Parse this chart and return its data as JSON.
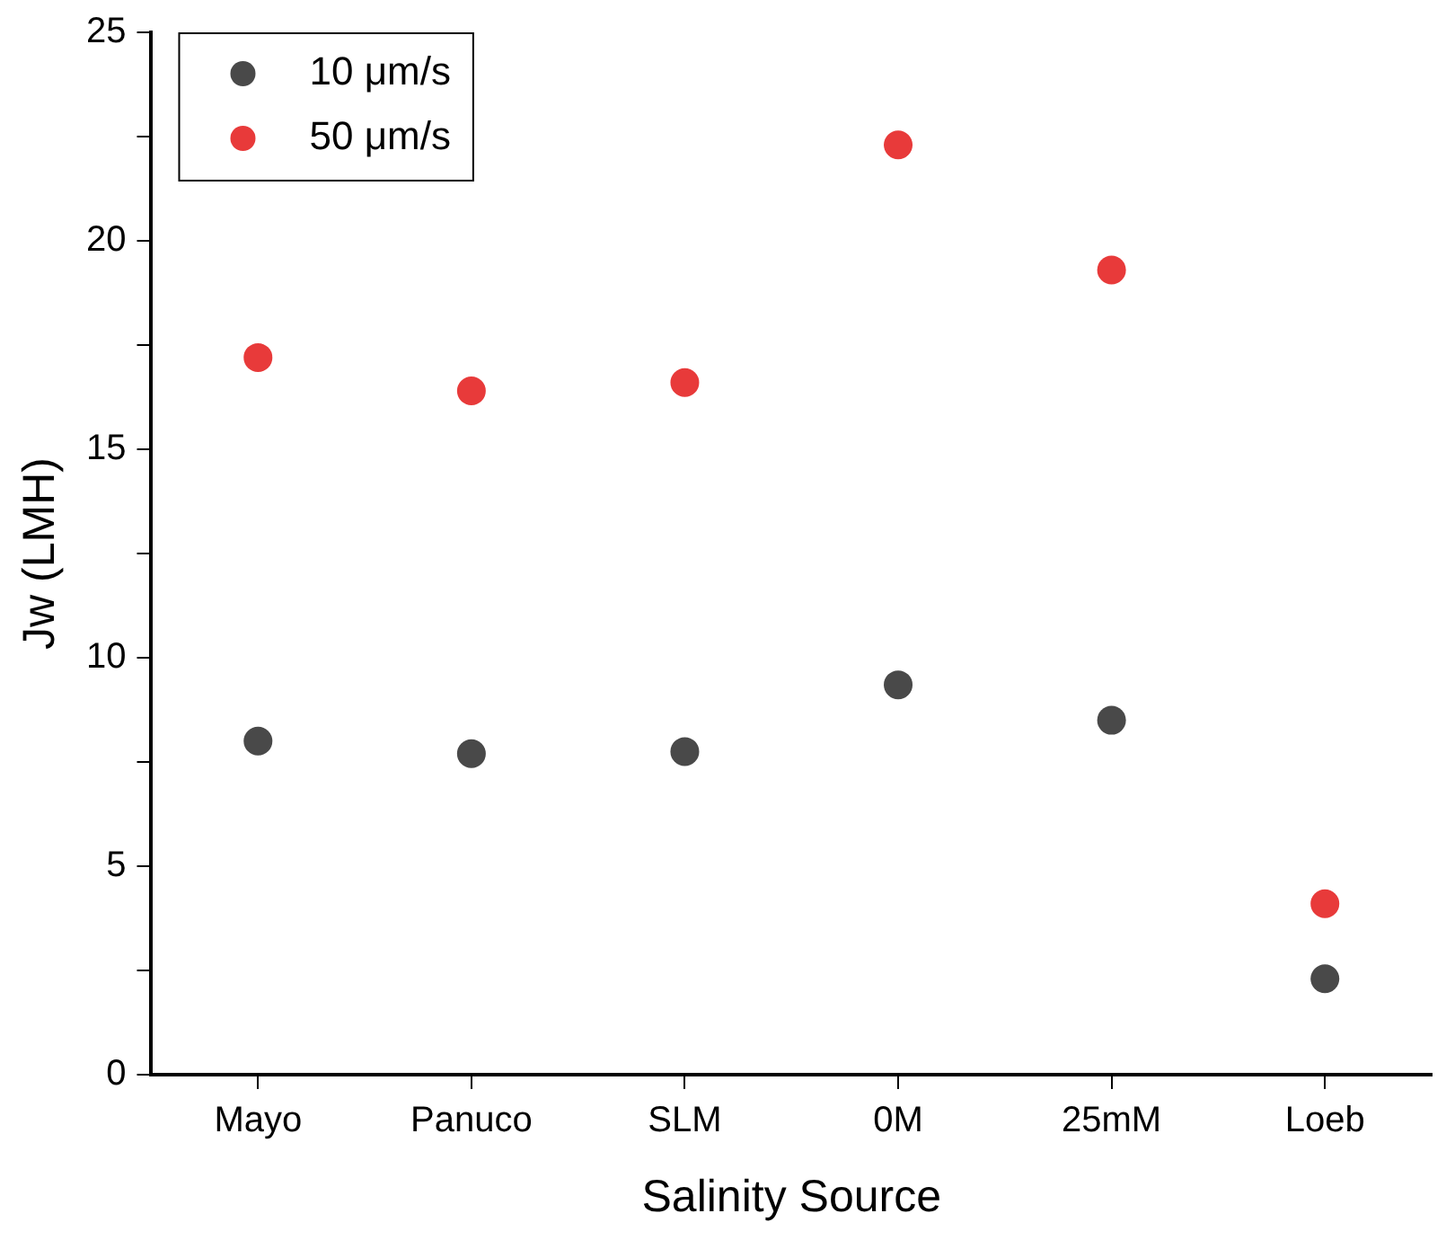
{
  "chart_data": {
    "type": "scatter",
    "xlabel": "Salinity Source",
    "ylabel": "Jw (LMH)",
    "categories": [
      "Mayo",
      "Panuco",
      "SLM",
      "0M",
      "25mM",
      "Loeb"
    ],
    "series": [
      {
        "name": "10 μm/s",
        "color": "#494949",
        "values": [
          8.0,
          7.7,
          7.75,
          9.35,
          8.5,
          2.3
        ]
      },
      {
        "name": "50 μm/s",
        "color": "#e83a3a",
        "values": [
          17.2,
          16.4,
          16.6,
          22.3,
          19.3,
          4.1
        ]
      }
    ],
    "ylim": [
      0,
      25
    ],
    "yticks": [
      0,
      {
        "value": 2.5,
        "label": null
      },
      5,
      {
        "value": 7.5,
        "label": null
      },
      10,
      {
        "value": 12.5,
        "label": null
      },
      15,
      {
        "value": 17.5,
        "label": null
      },
      20,
      {
        "value": 22.5,
        "label": null
      },
      25
    ],
    "grid": false,
    "legend": "top left",
    "marker": "circle"
  }
}
